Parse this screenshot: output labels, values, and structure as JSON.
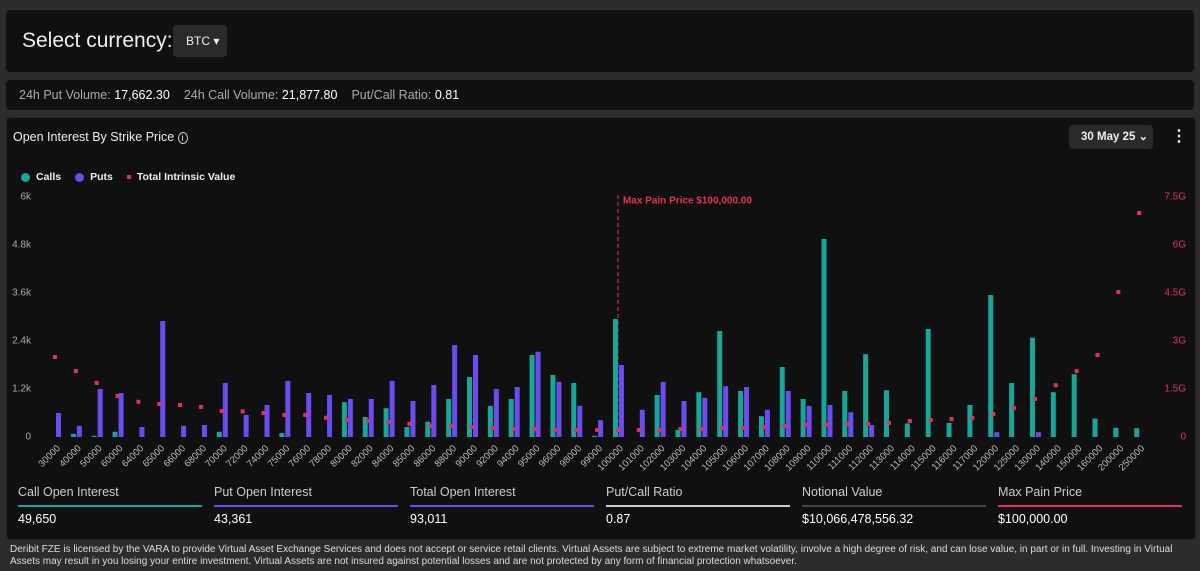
{
  "header": {
    "label": "Select currency:",
    "currency": "BTC"
  },
  "stats": [
    {
      "label": "24h Put Volume:",
      "value": "17,662.30"
    },
    {
      "label": "24h Call Volume:",
      "value": "21,877.80"
    },
    {
      "label": "Put/Call Ratio:",
      "value": "0.81"
    }
  ],
  "card": {
    "title": "Open Interest By Strike Price",
    "date": "30 May 25"
  },
  "chart_data": {
    "type": "bar",
    "categories": [
      "30000",
      "40000",
      "50000",
      "60000",
      "64000",
      "65000",
      "66000",
      "68000",
      "70000",
      "72000",
      "74000",
      "75000",
      "76000",
      "78000",
      "80000",
      "82000",
      "84000",
      "85000",
      "86000",
      "88000",
      "90000",
      "92000",
      "94000",
      "95000",
      "96000",
      "98000",
      "99000",
      "100000",
      "101000",
      "102000",
      "103000",
      "104000",
      "105000",
      "106000",
      "107000",
      "108000",
      "109000",
      "110000",
      "111000",
      "112000",
      "113000",
      "114000",
      "115000",
      "116000",
      "117000",
      "120000",
      "125000",
      "130000",
      "140000",
      "150000",
      "160000",
      "200000",
      "250000"
    ],
    "series": [
      {
        "name": "Calls",
        "color": "#17a699",
        "values": [
          0,
          80,
          30,
          130,
          0,
          0,
          0,
          0,
          130,
          0,
          0,
          100,
          0,
          0,
          870,
          500,
          720,
          250,
          380,
          950,
          1500,
          780,
          950,
          2050,
          1550,
          1350,
          30,
          2950,
          0,
          1050,
          180,
          1120,
          2650,
          1150,
          520,
          1750,
          950,
          4950,
          1150,
          2070,
          1170,
          340,
          2700,
          350,
          800,
          3550,
          1350,
          2480,
          1120,
          1570,
          460,
          230,
          220
        ]
      },
      {
        "name": "Puts",
        "color": "#6a4cf0",
        "values": [
          600,
          280,
          1200,
          1100,
          250,
          2900,
          280,
          300,
          1350,
          550,
          800,
          1400,
          1100,
          1050,
          950,
          950,
          1400,
          900,
          1300,
          2300,
          2050,
          1200,
          1250,
          2130,
          1380,
          780,
          420,
          1800,
          680,
          1380,
          900,
          980,
          1270,
          1250,
          680,
          1150,
          780,
          800,
          620,
          300,
          0,
          0,
          0,
          0,
          0,
          120,
          0,
          120,
          0,
          0,
          0,
          0,
          0
        ]
      },
      {
        "name": "Total Intrinsic Value",
        "color": "#e0335a",
        "type": "scatter",
        "axis": "y2",
        "values": [
          2.5,
          2.06,
          1.69,
          1.28,
          1.1,
          1.03,
          1.0,
          0.94,
          0.81,
          0.8,
          0.75,
          0.69,
          0.69,
          0.6,
          0.53,
          0.5,
          0.47,
          0.41,
          0.34,
          0.34,
          0.31,
          0.28,
          0.25,
          0.25,
          0.22,
          0.22,
          0.22,
          0.22,
          0.22,
          0.22,
          0.25,
          0.25,
          0.28,
          0.28,
          0.31,
          0.34,
          0.38,
          0.38,
          0.41,
          0.41,
          0.44,
          0.5,
          0.53,
          0.56,
          0.6,
          0.72,
          0.9,
          1.19,
          1.62,
          2.06,
          2.56,
          4.53,
          7.0
        ]
      }
    ],
    "ylim": [
      0,
      6000
    ],
    "yticks": [
      0,
      {
        "value": 1200,
        "label": "1.2k"
      },
      {
        "value": 2400,
        "label": "2.4k"
      },
      {
        "value": 3600,
        "label": "3.6k"
      },
      {
        "value": 4800,
        "label": "4.8k"
      },
      {
        "value": 6000,
        "label": "6k"
      }
    ],
    "y2lim": [
      0,
      7.5
    ],
    "y2ticks": [
      0,
      {
        "value": 1.5,
        "label": "1.5G"
      },
      {
        "value": 3,
        "label": "3G"
      },
      {
        "value": 4.5,
        "label": "4.5G"
      },
      {
        "value": 6,
        "label": "6G"
      },
      {
        "value": 7.5,
        "label": "7.5G"
      }
    ],
    "annotation": {
      "text": "Max Pain Price $100,000.00",
      "category": "100000"
    }
  },
  "summary": [
    {
      "label": "Call Open Interest",
      "value": "49,650",
      "color": "#17a699"
    },
    {
      "label": "Put Open Interest",
      "value": "43,361",
      "color": "#6a4cf0"
    },
    {
      "label": "Total Open Interest",
      "value": "93,011",
      "color": "#6a4cf0"
    },
    {
      "label": "Put/Call Ratio",
      "value": "0.87",
      "color": "#cccccc"
    },
    {
      "label": "Notional Value",
      "value": "$10,066,478,556.32",
      "color": "#444444"
    },
    {
      "label": "Max Pain Price",
      "value": "$100,000.00",
      "color": "#e0335a"
    }
  ],
  "footer": "Deribit FZE is licensed by the VARA to provide Virtual Asset Exchange Services and does not accept or service retail clients. Virtual Assets are subject to extreme market volatility, involve a high degree of risk, and can lose value, in part or in full. Investing in Virtual Assets may result in you losing your entire investment. Virtual Assets are not insured against potential losses and are not protected by any form of financial protection whatsoever."
}
